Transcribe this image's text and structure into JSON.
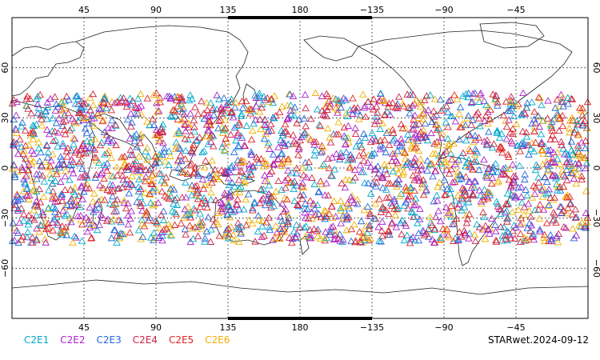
{
  "chart_data": {
    "type": "scatter",
    "projection": "equirectangular",
    "lon_range": [
      0,
      360
    ],
    "lat_range": [
      -90,
      90
    ],
    "grid": true,
    "marker": "triangle",
    "x_ticks_top": [
      "45",
      "90",
      "135",
      "180",
      "−135",
      "−90",
      "−45"
    ],
    "x_ticks_bottom": [
      "45",
      "90",
      "135",
      "180",
      "−135",
      "−90",
      "−45"
    ],
    "y_ticks_left": [
      "60",
      "30",
      "0",
      "−30",
      "−60"
    ],
    "y_ticks_right": [
      "60",
      "30",
      "0",
      "−30",
      "−60"
    ],
    "x_tick_lon": [
      45,
      90,
      135,
      180,
      225,
      270,
      315
    ],
    "y_tick_lat": [
      60,
      30,
      0,
      -30,
      -60
    ],
    "observation_lat_range": [
      -45,
      45
    ],
    "series": [
      {
        "name": "C2E1",
        "color": "#00aacc"
      },
      {
        "name": "C2E2",
        "color": "#aa22cc"
      },
      {
        "name": "C2E3",
        "color": "#2266dd"
      },
      {
        "name": "C2E4",
        "color": "#cc2244"
      },
      {
        "name": "C2E5",
        "color": "#dd2222"
      },
      {
        "name": "C2E6",
        "color": "#f0b000"
      }
    ]
  },
  "source_label": "STARwet.2024-09-12"
}
